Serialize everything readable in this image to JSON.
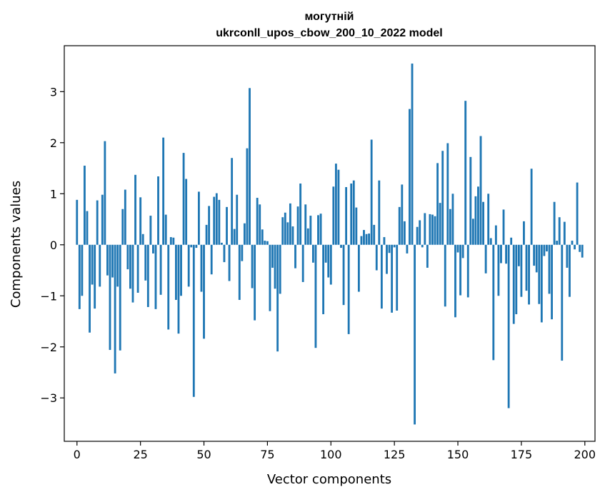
{
  "chart_data": {
    "type": "bar",
    "title_lines": [
      "могутній",
      "ukrconll_upos_cbow_200_10_2022 model"
    ],
    "xlabel": "Vector components",
    "ylabel": "Components values",
    "xlim": [
      -5,
      204
    ],
    "ylim": [
      -3.85,
      3.9
    ],
    "xticks": [
      0,
      25,
      50,
      75,
      100,
      125,
      150,
      175,
      200
    ],
    "yticks": [
      -3,
      -2,
      -1,
      0,
      1,
      2,
      3
    ],
    "ytick_labels": [
      "−3",
      "−2",
      "−1",
      "0",
      "1",
      "2",
      "3"
    ],
    "bar_color": "#1f77b4",
    "values": [
      0.88,
      -1.26,
      -1.0,
      1.55,
      0.66,
      -1.72,
      -0.78,
      -1.25,
      0.87,
      -0.82,
      0.98,
      2.03,
      -0.6,
      -2.06,
      -0.64,
      -2.52,
      -0.82,
      -2.07,
      0.7,
      1.08,
      -0.48,
      -0.86,
      -1.13,
      1.37,
      -0.94,
      0.93,
      0.21,
      -0.7,
      -1.22,
      0.57,
      -0.17,
      -1.26,
      1.34,
      -0.98,
      2.1,
      0.59,
      -1.66,
      0.15,
      0.14,
      -1.08,
      -1.74,
      -1.0,
      1.8,
      1.29,
      -0.82,
      -0.05,
      -2.98,
      -0.06,
      1.04,
      -0.92,
      -1.84,
      0.39,
      0.76,
      -0.58,
      0.94,
      1.01,
      0.88,
      0.04,
      -0.34,
      0.74,
      -0.71,
      1.7,
      0.31,
      0.98,
      -1.08,
      -0.32,
      0.42,
      1.89,
      3.07,
      -0.85,
      -1.48,
      0.92,
      0.79,
      0.3,
      0.08,
      0.07,
      -1.3,
      -0.45,
      -0.86,
      -2.09,
      -0.96,
      0.54,
      0.63,
      0.44,
      0.81,
      0.36,
      -0.46,
      0.75,
      1.2,
      -0.73,
      0.79,
      0.32,
      0.57,
      -0.35,
      -2.02,
      0.58,
      0.61,
      -1.36,
      -0.35,
      -0.64,
      -0.78,
      1.14,
      1.59,
      1.47,
      -0.06,
      -1.18,
      1.13,
      -1.75,
      1.2,
      1.26,
      0.73,
      -0.92,
      0.17,
      0.29,
      0.21,
      0.22,
      2.06,
      0.39,
      -0.5,
      1.26,
      -1.25,
      0.15,
      -0.57,
      -0.16,
      -1.33,
      -0.05,
      -1.29,
      0.74,
      1.18,
      0.46,
      -0.17,
      2.66,
      3.55,
      -3.52,
      0.35,
      0.48,
      -0.05,
      0.62,
      -0.45,
      0.6,
      0.59,
      0.56,
      1.6,
      0.82,
      1.84,
      -1.21,
      1.99,
      0.7,
      1.0,
      -1.42,
      -0.15,
      -0.99,
      -0.26,
      2.82,
      -1.03,
      1.72,
      0.51,
      0.95,
      1.14,
      2.13,
      0.84,
      -0.56,
      1.0,
      0.13,
      -2.26,
      0.38,
      -1.0,
      -0.36,
      0.69,
      -0.37,
      -3.2,
      0.14,
      -1.55,
      -1.36,
      -0.42,
      -1.02,
      0.46,
      -0.9,
      -1.17,
      1.49,
      -0.41,
      -0.54,
      -1.16,
      -1.52,
      -0.22,
      -0.13,
      -0.96,
      -1.46,
      0.84,
      0.08,
      0.54,
      -2.27,
      0.45,
      -0.45,
      -1.02,
      0.08,
      -0.09,
      1.22,
      -0.14,
      -0.25
    ]
  }
}
